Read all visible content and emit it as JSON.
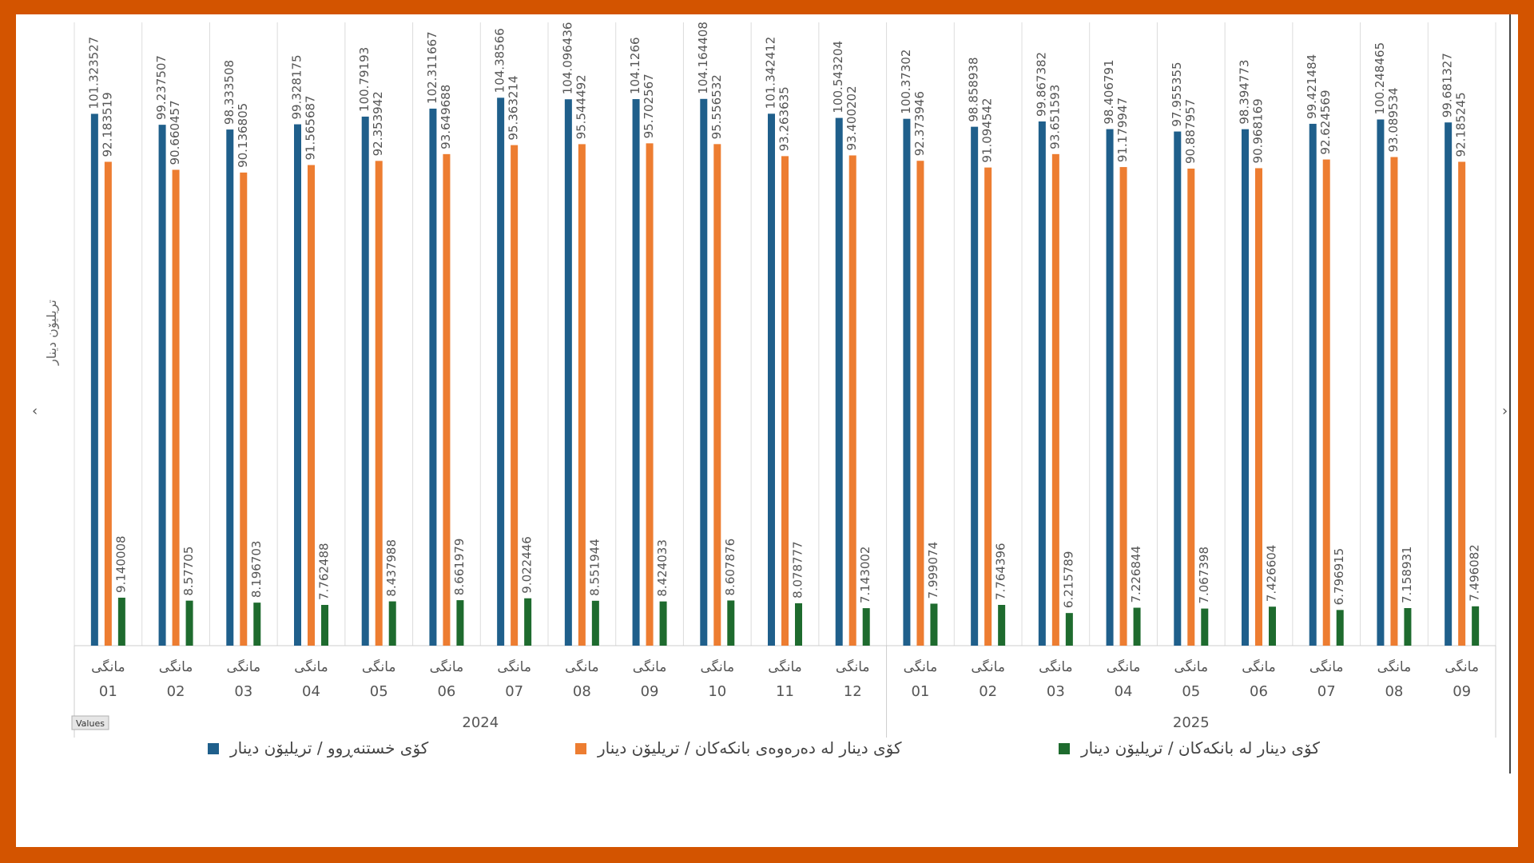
{
  "chart_data": {
    "type": "bar",
    "ylabel": "تریلیۆن دینار",
    "ylim": [
      0,
      110
    ],
    "grid": true,
    "legend_position": "bottom",
    "values_tag": "Values",
    "month_word": "مانگی",
    "years": [
      {
        "label": "2024",
        "months": [
          "01",
          "02",
          "03",
          "04",
          "05",
          "06",
          "07",
          "08",
          "09",
          "10",
          "11",
          "12"
        ]
      },
      {
        "label": "2025",
        "months": [
          "01",
          "02",
          "03",
          "04",
          "05",
          "06",
          "07",
          "08",
          "09"
        ]
      }
    ],
    "series": [
      {
        "name": "کۆی خستنەڕوو / تریلیۆن دینار",
        "color": "#1f5f8b",
        "values": [
          101.323527,
          99.237507,
          98.333508,
          99.328175,
          100.79193,
          102.311667,
          104.38566,
          104.096436,
          104.1266,
          104.164408,
          101.342412,
          100.543204,
          100.37302,
          98.858938,
          99.867382,
          98.406791,
          97.955355,
          98.394773,
          99.421484,
          100.248465,
          99.681327
        ]
      },
      {
        "name": "کۆی دینار لە دەرەوەی بانکەکان / تریلیۆن دینار",
        "color": "#ed7d31",
        "values": [
          92.183519,
          90.660457,
          90.136805,
          91.565687,
          92.353942,
          93.649688,
          95.363214,
          95.544492,
          95.702567,
          95.556532,
          93.263635,
          93.400202,
          92.373946,
          91.094542,
          93.651593,
          91.179947,
          90.887957,
          90.968169,
          92.624569,
          93.089534,
          92.185245
        ]
      },
      {
        "name": "کۆی دینار لە بانکەکان / تریلیۆن دینار",
        "color": "#1e6b2e",
        "values": [
          9.140008,
          8.57705,
          8.196703,
          7.762488,
          8.437988,
          8.661979,
          9.022446,
          8.551944,
          8.424033,
          8.607876,
          8.078777,
          7.143002,
          7.999074,
          7.764396,
          6.215789,
          7.226844,
          7.067398,
          7.426604,
          6.796915,
          7.158931,
          7.496082
        ]
      }
    ],
    "value_labels": [
      [
        "101.323527",
        "99.237507",
        "98.333508",
        "99.328175",
        "100.79193",
        "102.311667",
        "104.38566",
        "104.096436",
        "104.1266",
        "104.164408",
        "101.342412",
        "100.543204",
        "100.37302",
        "98.858938",
        "99.867382",
        "98.406791",
        "97.955355",
        "98.394773",
        "99.421484",
        "100.248465",
        "99.681327"
      ],
      [
        "92.183519",
        "90.660457",
        "90.136805",
        "91.565687",
        "92.353942",
        "93.649688",
        "95.363214",
        "95.544492",
        "95.702567",
        "95.556532",
        "93.263635",
        "93.400202",
        "92.373946",
        "91.094542",
        "93.651593",
        "91.179947",
        "90.887957",
        "90.968169",
        "92.624569",
        "93.089534",
        "92.185245"
      ],
      [
        "9.140008",
        "8.57705",
        "8.196703",
        "7.762488",
        "8.437988",
        "8.661979",
        "9.022446",
        "8.551944",
        "8.424033",
        "8.607876",
        "8.078777",
        "7.143002",
        "7.999074",
        "7.764396",
        "6.215789",
        "7.226844",
        "7.067398",
        "7.426604",
        "6.796915",
        "7.158931",
        "7.496082"
      ]
    ]
  }
}
